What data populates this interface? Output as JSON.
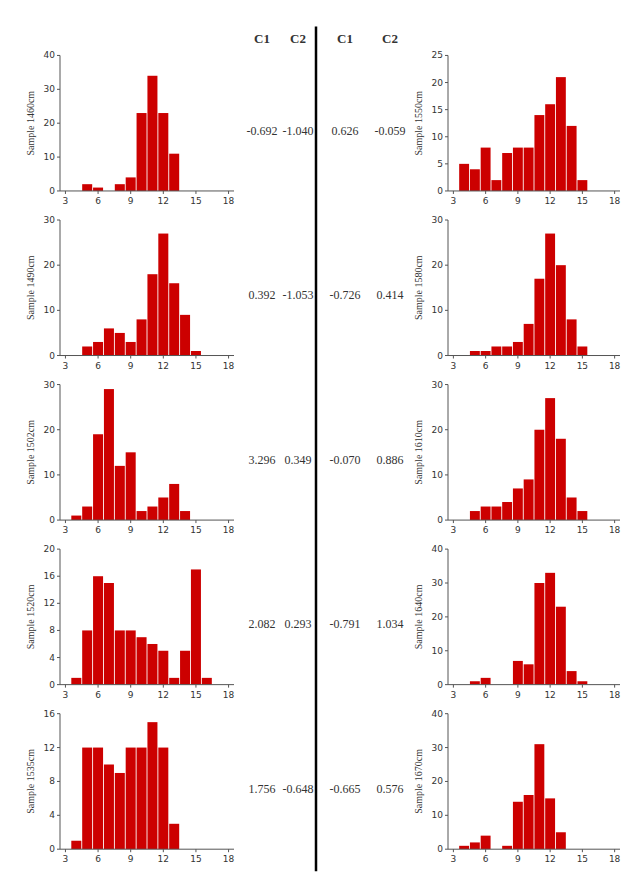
{
  "chart_data": [
    {
      "type": "bar",
      "ylabel": "Sample 1460cm",
      "annotations": [
        "-0.692",
        "-1.040"
      ],
      "x": [
        3,
        4,
        5,
        6,
        7,
        8,
        9,
        10,
        11,
        12,
        13,
        14,
        15,
        16,
        17
      ],
      "values": [
        0,
        0,
        2,
        1,
        0,
        2,
        4,
        23,
        34,
        23,
        11,
        0,
        0,
        0,
        0
      ],
      "color": "#cc0000",
      "xlim": [
        2.5,
        18.5
      ],
      "xticks": [
        3,
        6,
        9,
        12,
        15,
        18
      ],
      "ylim": [
        0,
        40
      ],
      "yticks": [
        0,
        10,
        20,
        30,
        40
      ],
      "grid": false
    },
    {
      "type": "bar",
      "ylabel": "Sample 1490cm",
      "annotations": [
        "0.392",
        "-1.053"
      ],
      "x": [
        3,
        4,
        5,
        6,
        7,
        8,
        9,
        10,
        11,
        12,
        13,
        14,
        15,
        16,
        17
      ],
      "values": [
        0,
        0,
        2,
        3,
        6,
        5,
        3,
        8,
        18,
        27,
        16,
        9,
        1,
        0,
        0
      ],
      "color": "#cc0000",
      "xlim": [
        2.5,
        18.5
      ],
      "xticks": [
        3,
        6,
        9,
        12,
        15,
        18
      ],
      "ylim": [
        0,
        30
      ],
      "yticks": [
        0,
        10,
        20,
        30
      ],
      "grid": false
    },
    {
      "type": "bar",
      "ylabel": "Sample 1502cm",
      "annotations": [
        "3.296",
        "0.349"
      ],
      "x": [
        3,
        4,
        5,
        6,
        7,
        8,
        9,
        10,
        11,
        12,
        13,
        14,
        15,
        16,
        17
      ],
      "values": [
        0,
        1,
        3,
        19,
        29,
        12,
        15,
        2,
        3,
        5,
        8,
        2,
        0,
        0,
        0
      ],
      "color": "#cc0000",
      "xlim": [
        2.5,
        18.5
      ],
      "xticks": [
        3,
        6,
        9,
        12,
        15,
        18
      ],
      "ylim": [
        0,
        30
      ],
      "yticks": [
        0,
        10,
        20,
        30
      ],
      "grid": false
    },
    {
      "type": "bar",
      "ylabel": "Sample 1520cm",
      "annotations": [
        "2.082",
        "0.293"
      ],
      "x": [
        3,
        4,
        5,
        6,
        7,
        8,
        9,
        10,
        11,
        12,
        13,
        14,
        15,
        16,
        17
      ],
      "values": [
        0,
        1,
        8,
        16,
        15,
        8,
        8,
        7,
        6,
        5,
        1,
        5,
        17,
        1,
        0
      ],
      "color": "#cc0000",
      "xlim": [
        2.5,
        18.5
      ],
      "xticks": [
        3,
        6,
        9,
        12,
        15,
        18
      ],
      "ylim": [
        0,
        20
      ],
      "yticks": [
        0,
        4,
        8,
        12,
        16,
        20
      ],
      "grid": false
    },
    {
      "type": "bar",
      "ylabel": "Sample 1535cm",
      "annotations": [
        "1.756",
        "-0.648"
      ],
      "x": [
        3,
        4,
        5,
        6,
        7,
        8,
        9,
        10,
        11,
        12,
        13,
        14,
        15,
        16,
        17
      ],
      "values": [
        0,
        1,
        12,
        12,
        10,
        9,
        12,
        12,
        15,
        12,
        3,
        0,
        0,
        0,
        0
      ],
      "color": "#cc0000",
      "xlim": [
        2.5,
        18.5
      ],
      "xticks": [
        3,
        6,
        9,
        12,
        15,
        18
      ],
      "ylim": [
        0,
        16
      ],
      "yticks": [
        0,
        4,
        8,
        12,
        16
      ],
      "grid": false
    },
    {
      "type": "bar",
      "ylabel": "Sample 1550cm",
      "annotations": [
        "0.626",
        "-0.059"
      ],
      "x": [
        3,
        4,
        5,
        6,
        7,
        8,
        9,
        10,
        11,
        12,
        13,
        14,
        15,
        16,
        17
      ],
      "values": [
        0,
        5,
        4,
        8,
        2,
        7,
        8,
        8,
        14,
        16,
        21,
        12,
        2,
        0,
        0
      ],
      "color": "#cc0000",
      "xlim": [
        2.5,
        18.5
      ],
      "xticks": [
        3,
        6,
        9,
        12,
        15,
        18
      ],
      "ylim": [
        0,
        25
      ],
      "yticks": [
        0,
        5,
        10,
        15,
        20,
        25
      ],
      "grid": false
    },
    {
      "type": "bar",
      "ylabel": "Sample 1580cm",
      "annotations": [
        "-0.726",
        "0.414"
      ],
      "x": [
        3,
        4,
        5,
        6,
        7,
        8,
        9,
        10,
        11,
        12,
        13,
        14,
        15,
        16,
        17
      ],
      "values": [
        0,
        0,
        1,
        1,
        2,
        2,
        3,
        7,
        17,
        27,
        20,
        8,
        2,
        0,
        0
      ],
      "color": "#cc0000",
      "xlim": [
        2.5,
        18.5
      ],
      "xticks": [
        3,
        6,
        9,
        12,
        15,
        18
      ],
      "ylim": [
        0,
        30
      ],
      "yticks": [
        0,
        10,
        20,
        30
      ],
      "grid": false
    },
    {
      "type": "bar",
      "ylabel": "Sample 1610cm",
      "annotations": [
        "-0.070",
        "0.886"
      ],
      "x": [
        3,
        4,
        5,
        6,
        7,
        8,
        9,
        10,
        11,
        12,
        13,
        14,
        15,
        16,
        17
      ],
      "values": [
        0,
        0,
        2,
        3,
        3,
        4,
        7,
        9,
        20,
        27,
        18,
        5,
        2,
        0,
        0
      ],
      "color": "#cc0000",
      "xlim": [
        2.5,
        18.5
      ],
      "xticks": [
        3,
        6,
        9,
        12,
        15,
        18
      ],
      "ylim": [
        0,
        30
      ],
      "yticks": [
        0,
        10,
        20,
        30
      ],
      "grid": false
    },
    {
      "type": "bar",
      "ylabel": "Sample 1640cm",
      "annotations": [
        "-0.791",
        "1.034"
      ],
      "x": [
        3,
        4,
        5,
        6,
        7,
        8,
        9,
        10,
        11,
        12,
        13,
        14,
        15,
        16,
        17
      ],
      "values": [
        0,
        0,
        1,
        2,
        0,
        0,
        7,
        6,
        30,
        33,
        23,
        4,
        1,
        0,
        0
      ],
      "color": "#cc0000",
      "xlim": [
        2.5,
        18.5
      ],
      "xticks": [
        3,
        6,
        9,
        12,
        15,
        18
      ],
      "ylim": [
        0,
        40
      ],
      "yticks": [
        0,
        10,
        20,
        30,
        40
      ],
      "grid": false
    },
    {
      "type": "bar",
      "ylabel": "Sample 1670cm",
      "annotations": [
        "-0.665",
        "0.576"
      ],
      "x": [
        3,
        4,
        5,
        6,
        7,
        8,
        9,
        10,
        11,
        12,
        13,
        14,
        15,
        16,
        17
      ],
      "values": [
        0,
        1,
        2,
        4,
        0,
        1,
        14,
        16,
        31,
        15,
        5,
        0,
        0,
        0,
        0
      ],
      "color": "#cc0000",
      "xlim": [
        2.5,
        18.5
      ],
      "xticks": [
        3,
        6,
        9,
        12,
        15,
        18
      ],
      "ylim": [
        0,
        40
      ],
      "yticks": [
        0,
        10,
        20,
        30,
        40
      ],
      "grid": false
    }
  ],
  "annotations": [
    "C1",
    "C2",
    "C1",
    "C2"
  ]
}
